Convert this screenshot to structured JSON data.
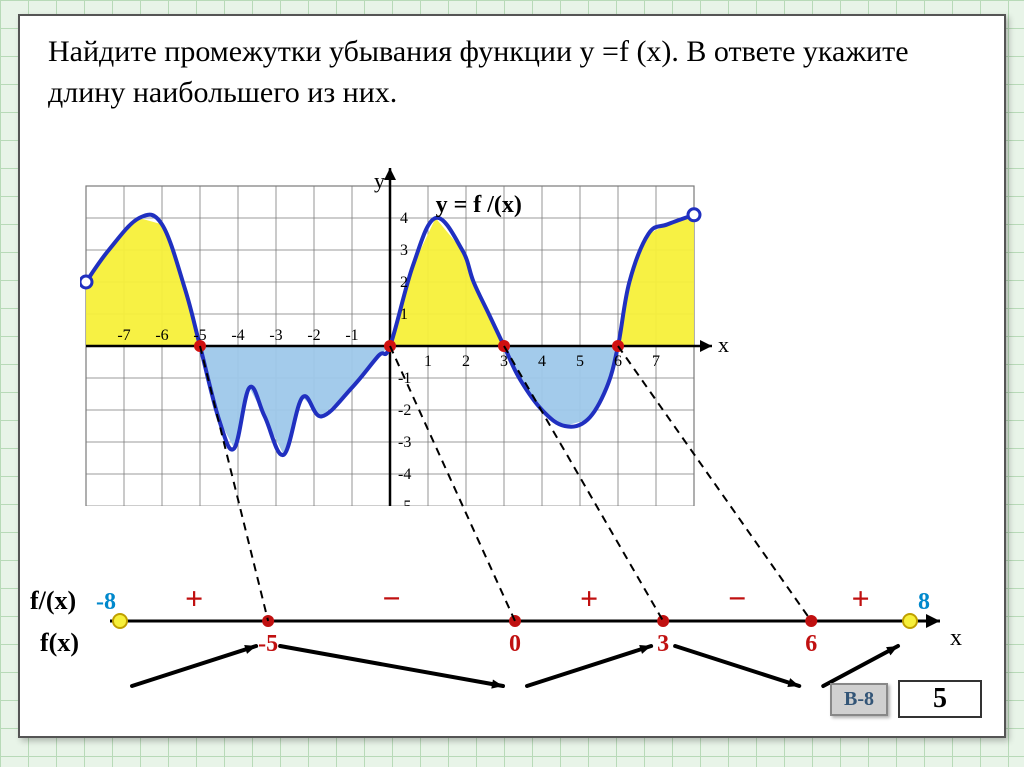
{
  "question_text": "Найдите промежутки убывания функции y =f (x). В ответе укажите длину наибольшего из них.",
  "chart": {
    "type": "line-area",
    "function_label": "y = f /(x)",
    "axis_y_label": "y",
    "axis_x_label": "x",
    "x_ticks": [
      "-7",
      "-6",
      "-5",
      "-4",
      "-3",
      "-2",
      "-1",
      "1",
      "2",
      "3",
      "4",
      "5",
      "6",
      "7"
    ],
    "y_ticks_pos": [
      "1",
      "2",
      "3",
      "4"
    ],
    "y_ticks_neg": [
      "-1",
      "-2",
      "-3",
      "-4",
      "-5"
    ],
    "xlim": [
      -8,
      8
    ],
    "ylim": [
      -5.5,
      5
    ],
    "grid_color": "#7a7a7a",
    "axis_color": "#000000",
    "curve_color": "#2030c0",
    "curve_width": 4,
    "pos_fill": "#f7f03a",
    "neg_fill": "#9ec8ea",
    "zero_dot_color": "#d01010",
    "open_dot_color": "#ffffff",
    "open_dot_stroke": "#2030c0",
    "zeros_x": [
      -5,
      0,
      3,
      6
    ],
    "dashed_drop_color": "#000000",
    "curve_points": [
      [
        -8,
        2
      ],
      [
        -7.4,
        3
      ],
      [
        -6.6,
        4.0
      ],
      [
        -6,
        3.8
      ],
      [
        -5.4,
        1.8
      ],
      [
        -5,
        0
      ],
      [
        -4.5,
        -2.3
      ],
      [
        -4.1,
        -3.2
      ],
      [
        -3.7,
        -1.3
      ],
      [
        -3.3,
        -2.2
      ],
      [
        -2.8,
        -3.4
      ],
      [
        -2.3,
        -1.6
      ],
      [
        -1.8,
        -2.2
      ],
      [
        -1.0,
        -1.3
      ],
      [
        -0.3,
        -0.3
      ],
      [
        0,
        0
      ],
      [
        0.6,
        2.5
      ],
      [
        1.2,
        4.0
      ],
      [
        1.9,
        3.0
      ],
      [
        2.2,
        2.0
      ],
      [
        2.6,
        1.0
      ],
      [
        3,
        0
      ],
      [
        3.4,
        -1.0
      ],
      [
        4.0,
        -2.0
      ],
      [
        4.6,
        -2.5
      ],
      [
        5.2,
        -2.3
      ],
      [
        5.7,
        -1.3
      ],
      [
        6,
        0
      ],
      [
        6.3,
        2.0
      ],
      [
        6.8,
        3.5
      ],
      [
        7.3,
        3.8
      ],
      [
        8,
        4.1
      ]
    ]
  },
  "sign_line": {
    "fprime_label": "f/(x)",
    "f_label": "f(x)",
    "left_end": "-8",
    "right_end": "8",
    "end_color": "#0088cc",
    "zero_color": "#c01010",
    "plus_color": "#c01010",
    "minus_color": "#c01010",
    "arrow_color": "#000000",
    "axis_label": "x",
    "critical_points": [
      "-5",
      "0",
      "3",
      "6"
    ],
    "signs": [
      "+",
      "−",
      "+",
      "−",
      "+"
    ],
    "arrows": [
      "up",
      "down",
      "up",
      "down",
      "up"
    ]
  },
  "answer_button": "В-8",
  "answer_value": "5"
}
